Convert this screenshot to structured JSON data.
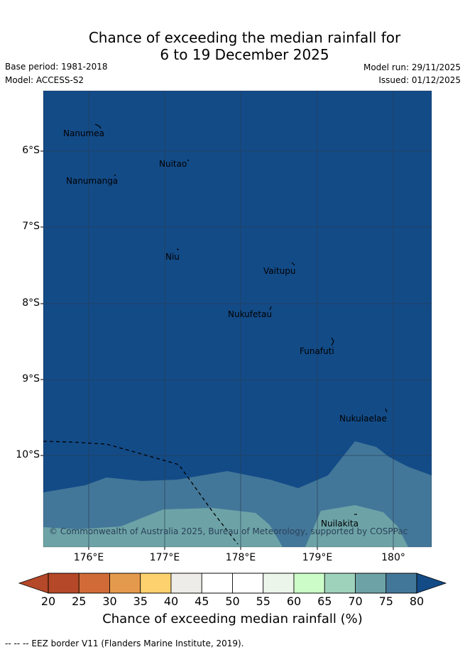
{
  "title": {
    "line1": "Chance of exceeding the median rainfall for",
    "line2": "6 to 19 December 2025"
  },
  "meta": {
    "base_period": "Base period: 1981-2018",
    "model": "Model: ACCESS-S2",
    "model_run": "Model run: 29/11/2025",
    "issued": "Issued: 01/12/2025"
  },
  "map": {
    "lat_labels": [
      "6°S",
      "7°S",
      "8°S",
      "9°S",
      "10°S"
    ],
    "lon_labels": [
      "176°E",
      "177°E",
      "178°E",
      "179°E",
      "180°"
    ],
    "islands": [
      "Nanumea",
      "Nuitao",
      "Nanumanga",
      "Niu",
      "Vaitupu",
      "Nukufetau",
      "Funafuti",
      "Nukulaelae",
      "Nuilakita"
    ],
    "copyright": "© Commonwealth of Australia 2025, Bureau of Meteorology, supported by COSPPac",
    "colors": {
      "band_80": "#134b87",
      "band_75": "#437799",
      "band_70": "#6da3a7",
      "grid": "#2d3f5a"
    }
  },
  "colorbar": {
    "ticks": [
      "20",
      "25",
      "30",
      "35",
      "40",
      "45",
      "50",
      "55",
      "60",
      "65",
      "70",
      "75",
      "80"
    ],
    "colors": [
      "#b54828",
      "#d06b37",
      "#e49a4c",
      "#fdd26e",
      "#eeece8",
      "#ffffff",
      "#ffffff",
      "#ecf5ea",
      "#ccfdc8",
      "#9fd2bb",
      "#6da3a7",
      "#437799"
    ],
    "low_extend_color": "#b54828",
    "high_extend_color": "#134b87",
    "label": "Chance of exceeding median rainfall (%)"
  },
  "footer": {
    "legend_line": "-- -- -- EEZ border V11 (Flanders Marine Institute, 2019)."
  }
}
